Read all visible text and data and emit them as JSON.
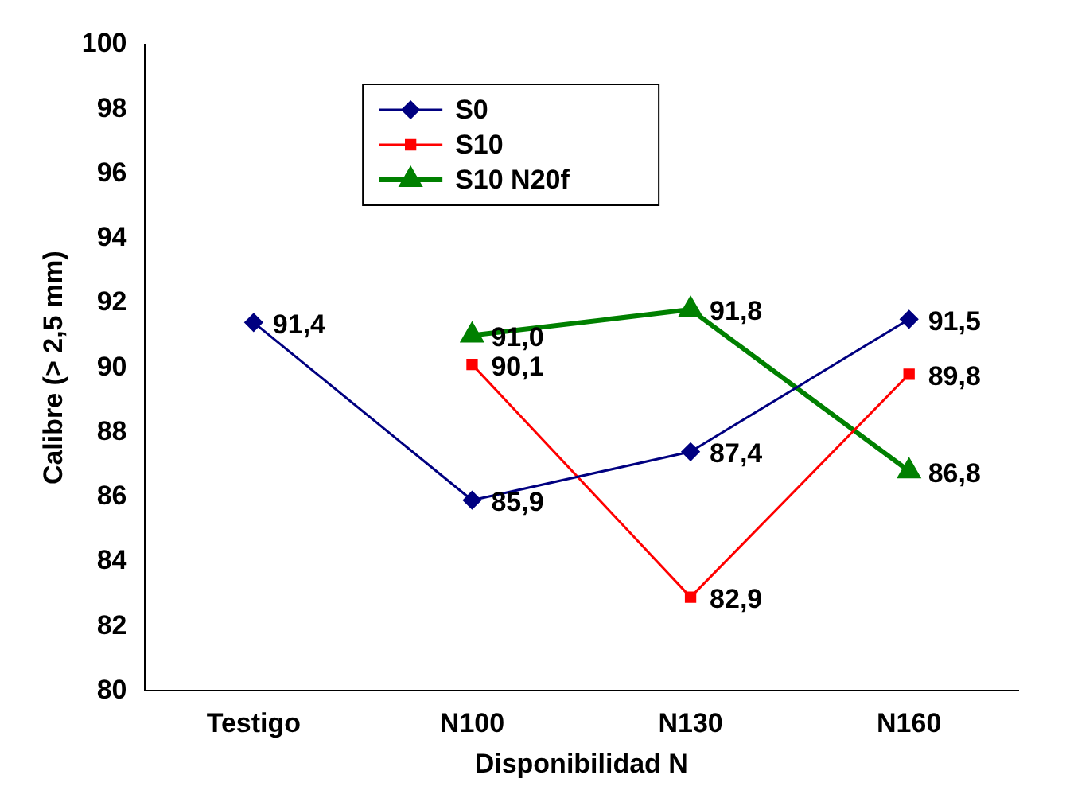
{
  "chart_data": {
    "type": "line",
    "xlabel": "Disponibilidad N",
    "ylabel": "Calibre (> 2,5 mm)",
    "categories": [
      "Testigo",
      "N100",
      "N130",
      "N160"
    ],
    "series": [
      {
        "name": "S0",
        "color": "#000080",
        "marker": "diamond",
        "values": [
          91.4,
          85.9,
          87.4,
          91.5
        ],
        "value_labels": [
          "91,4",
          "85,9",
          "87,4",
          "91,5"
        ]
      },
      {
        "name": "S10",
        "color": "#ff0000",
        "marker": "square",
        "values": [
          null,
          90.1,
          82.9,
          89.8
        ],
        "value_labels": [
          null,
          "90,1",
          "82,9",
          "89,8"
        ]
      },
      {
        "name": "S10 N20f",
        "color": "#008000",
        "marker": "triangle",
        "values": [
          null,
          91.0,
          91.8,
          86.8
        ],
        "value_labels": [
          null,
          "91,0",
          "91,8",
          "86,8"
        ]
      }
    ],
    "ylim": [
      80,
      100
    ],
    "yticks": [
      80,
      82,
      84,
      86,
      88,
      90,
      92,
      94,
      96,
      98,
      100
    ],
    "grid": false,
    "legend": "top"
  }
}
